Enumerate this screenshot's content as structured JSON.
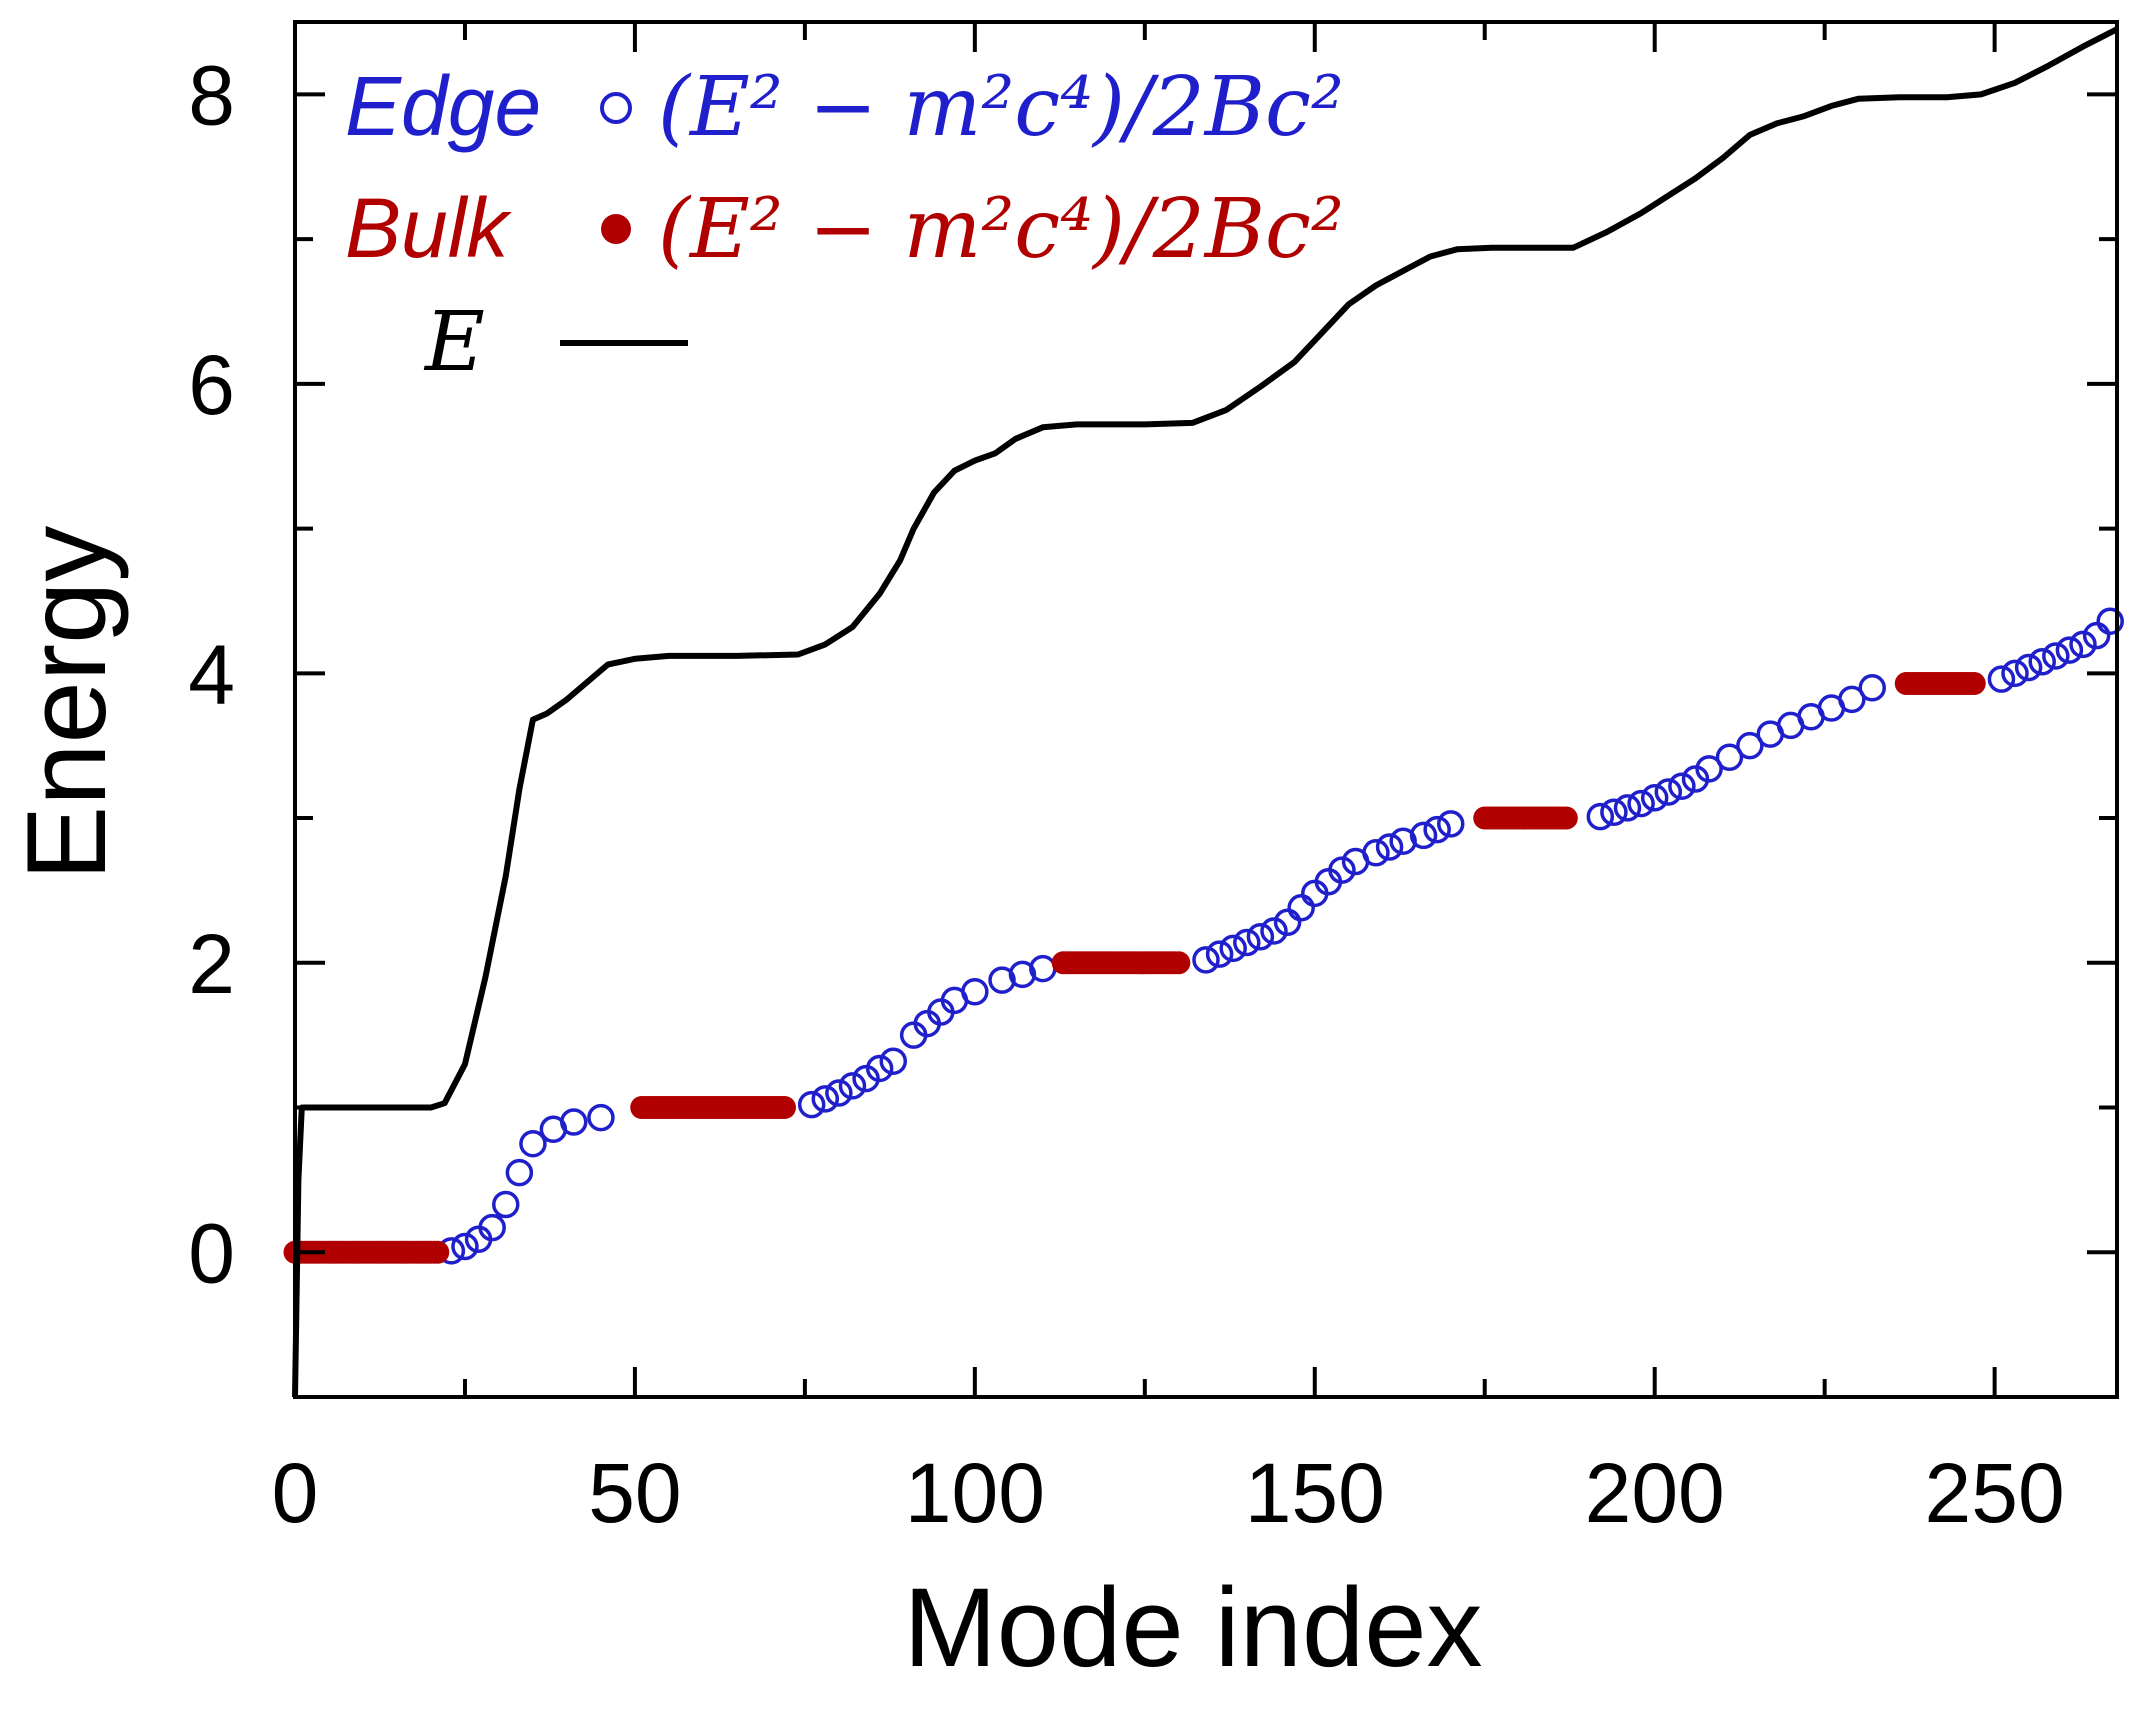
{
  "chart_data": {
    "type": "scatter",
    "title": "",
    "xlabel": "Mode index",
    "ylabel": "Energy",
    "xlim": [
      0,
      268
    ],
    "ylim": [
      -1,
      8.5
    ],
    "xticks": [
      0,
      50,
      100,
      150,
      200,
      250
    ],
    "yticks": [
      0,
      2,
      4,
      6,
      8
    ],
    "grid": false,
    "legend_position": "top-left",
    "colors": {
      "edge": "#1f1fcc",
      "bulk": "#b00000",
      "energy": "#000000"
    },
    "series": [
      {
        "name": "Edge",
        "label": "(E² − m²c⁴)/2Bc²",
        "style": "open-circle",
        "points": [
          [
            23,
            0.01
          ],
          [
            25,
            0.04
          ],
          [
            27,
            0.09
          ],
          [
            29,
            0.17
          ],
          [
            31,
            0.33
          ],
          [
            33,
            0.55
          ],
          [
            35,
            0.75
          ],
          [
            38,
            0.85
          ],
          [
            41,
            0.9
          ],
          [
            45,
            0.93
          ],
          [
            76,
            1.02
          ],
          [
            78,
            1.06
          ],
          [
            80,
            1.1
          ],
          [
            82,
            1.15
          ],
          [
            84,
            1.2
          ],
          [
            86,
            1.27
          ],
          [
            88,
            1.32
          ],
          [
            91,
            1.5
          ],
          [
            93,
            1.58
          ],
          [
            95,
            1.66
          ],
          [
            97,
            1.74
          ],
          [
            100,
            1.8
          ],
          [
            104,
            1.88
          ],
          [
            107,
            1.92
          ],
          [
            110,
            1.96
          ],
          [
            134,
            2.02
          ],
          [
            136,
            2.06
          ],
          [
            138,
            2.1
          ],
          [
            140,
            2.14
          ],
          [
            142,
            2.18
          ],
          [
            144,
            2.22
          ],
          [
            146,
            2.28
          ],
          [
            148,
            2.38
          ],
          [
            150,
            2.48
          ],
          [
            152,
            2.56
          ],
          [
            154,
            2.64
          ],
          [
            156,
            2.7
          ],
          [
            159,
            2.76
          ],
          [
            161,
            2.8
          ],
          [
            163,
            2.84
          ],
          [
            166,
            2.88
          ],
          [
            168,
            2.92
          ],
          [
            170,
            2.96
          ],
          [
            192,
            3.01
          ],
          [
            194,
            3.04
          ],
          [
            196,
            3.07
          ],
          [
            198,
            3.1
          ],
          [
            200,
            3.14
          ],
          [
            202,
            3.18
          ],
          [
            204,
            3.22
          ],
          [
            206,
            3.27
          ],
          [
            208,
            3.34
          ],
          [
            211,
            3.42
          ],
          [
            214,
            3.5
          ],
          [
            217,
            3.58
          ],
          [
            220,
            3.64
          ],
          [
            223,
            3.7
          ],
          [
            226,
            3.76
          ],
          [
            229,
            3.82
          ],
          [
            232,
            3.9
          ],
          [
            251,
            3.96
          ],
          [
            253,
            4.0
          ],
          [
            255,
            4.04
          ],
          [
            257,
            4.08
          ],
          [
            259,
            4.12
          ],
          [
            261,
            4.16
          ],
          [
            263,
            4.2
          ],
          [
            265,
            4.26
          ],
          [
            267,
            4.36
          ]
        ]
      },
      {
        "name": "Bulk",
        "label": "(E² − m²c⁴)/2Bc²",
        "style": "filled-circle",
        "ranges": [
          [
            0,
            21,
            0
          ],
          [
            51,
            72,
            1
          ],
          [
            113,
            130,
            2
          ],
          [
            175,
            187,
            3
          ],
          [
            237,
            247,
            3.93
          ]
        ]
      },
      {
        "name": "E",
        "label": "E",
        "style": "line",
        "points": [
          [
            0,
            -1
          ],
          [
            0.5,
            0.5
          ],
          [
            1,
            1.0
          ],
          [
            2,
            1.0
          ],
          [
            10,
            1.0
          ],
          [
            20,
            1.0
          ],
          [
            22,
            1.03
          ],
          [
            25,
            1.3
          ],
          [
            28,
            1.9
          ],
          [
            31,
            2.6
          ],
          [
            33,
            3.2
          ],
          [
            35,
            3.68
          ],
          [
            37,
            3.72
          ],
          [
            40,
            3.82
          ],
          [
            43,
            3.94
          ],
          [
            46,
            4.06
          ],
          [
            50,
            4.1
          ],
          [
            55,
            4.12
          ],
          [
            65,
            4.12
          ],
          [
            74,
            4.13
          ],
          [
            78,
            4.2
          ],
          [
            82,
            4.32
          ],
          [
            86,
            4.55
          ],
          [
            89,
            4.78
          ],
          [
            91,
            5.0
          ],
          [
            94,
            5.25
          ],
          [
            97,
            5.4
          ],
          [
            100,
            5.47
          ],
          [
            103,
            5.52
          ],
          [
            106,
            5.62
          ],
          [
            110,
            5.7
          ],
          [
            115,
            5.72
          ],
          [
            125,
            5.72
          ],
          [
            132,
            5.73
          ],
          [
            137,
            5.82
          ],
          [
            142,
            5.98
          ],
          [
            147,
            6.15
          ],
          [
            151,
            6.35
          ],
          [
            155,
            6.55
          ],
          [
            159,
            6.68
          ],
          [
            163,
            6.78
          ],
          [
            167,
            6.88
          ],
          [
            171,
            6.93
          ],
          [
            176,
            6.94
          ],
          [
            182,
            6.94
          ],
          [
            188,
            6.94
          ],
          [
            193,
            7.05
          ],
          [
            198,
            7.18
          ],
          [
            202,
            7.3
          ],
          [
            206,
            7.42
          ],
          [
            210,
            7.56
          ],
          [
            214,
            7.72
          ],
          [
            218,
            7.8
          ],
          [
            222,
            7.85
          ],
          [
            226,
            7.92
          ],
          [
            230,
            7.97
          ],
          [
            236,
            7.98
          ],
          [
            243,
            7.98
          ],
          [
            248,
            8.0
          ],
          [
            253,
            8.08
          ],
          [
            258,
            8.2
          ],
          [
            263,
            8.33
          ],
          [
            268,
            8.45
          ]
        ]
      }
    ]
  }
}
